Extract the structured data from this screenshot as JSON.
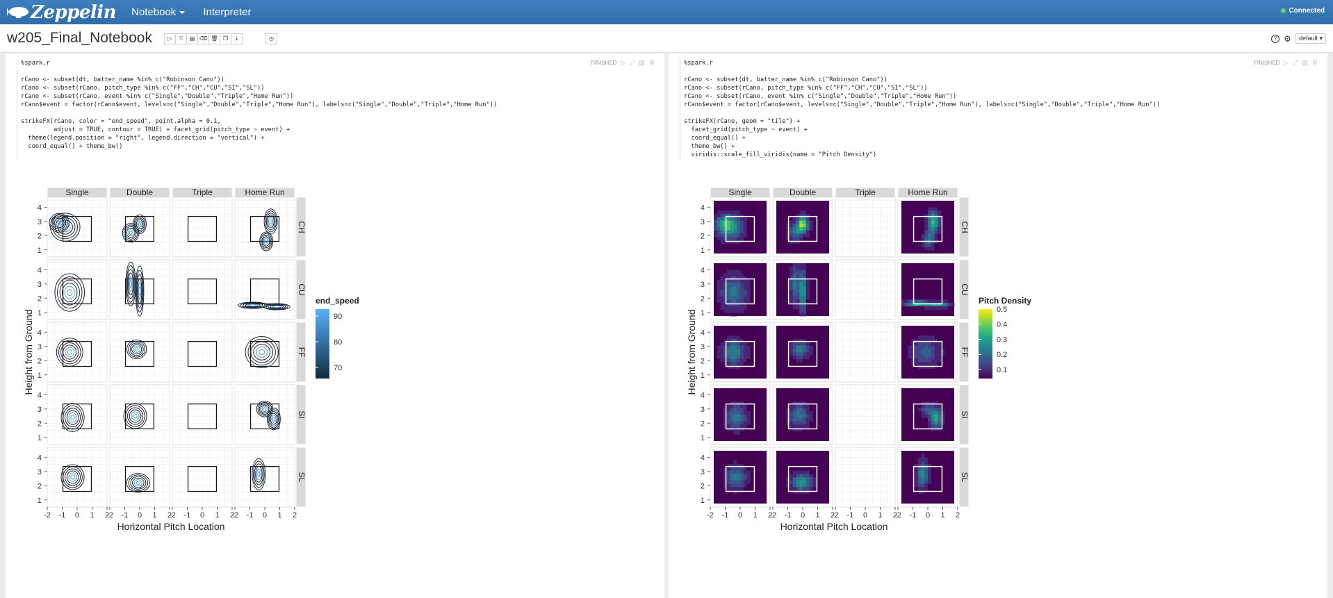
{
  "navbar": {
    "brand": "Zeppelin",
    "menu": [
      {
        "label": "Notebook",
        "has_caret": true
      },
      {
        "label": "Interpreter",
        "has_caret": false
      }
    ],
    "status": "Connected",
    "status_color": "#5cd65c"
  },
  "notebook": {
    "title": "w205_Final_Notebook",
    "toolbar_icons": [
      "play-icon",
      "hide-code-icon",
      "hide-output-icon",
      "eraser-icon",
      "trash-icon",
      "clone-icon",
      "export-icon"
    ],
    "schedule_icon": "clock-icon",
    "right": {
      "help_icon": "question-icon",
      "settings_icon": "gear-icon",
      "interpreter_button": "default"
    }
  },
  "paragraphs": [
    {
      "status": "FINISHED",
      "code": [
        "%spark.r",
        "",
        "rCano <- subset(dt, batter_name %in% c(\"Robinson Cano\"))",
        "rCano <- subset(rCano, pitch_type %in% c(\"FF\",\"CH\",\"CU\",\"SI\",\"SL\"))",
        "rCano <- subset(rCano, event %in% c(\"Single\",\"Double\",\"Triple\",\"Home Run\"))",
        "rCano$event = factor(rCano$event, levels=c(\"Single\",\"Double\",\"Triple\",\"Home Run\"), labels=c(\"Single\",\"Double\",\"Triple\",\"Home Run\"))",
        "",
        "strikeFX(rCano, color = \"end_speed\", point.alpha = 0.1,",
        "         adjust = TRUE, contour = TRUE) + facet_grid(pitch_type ~ event) +",
        "  theme(legend.position = \"right\", legend.direction = \"vertical\") +",
        "  coord_equal() + theme_bw()"
      ]
    },
    {
      "status": "FINISHED",
      "code": [
        "%spark.r",
        "",
        "rCano <- subset(dt, batter_name %in% c(\"Robinson Cano\"))",
        "rCano <- subset(rCano, pitch_type %in% c(\"FF\",\"CH\",\"CU\",\"SI\",\"SL\"))",
        "rCano <- subset(rCano, event %in% c(\"Single\",\"Double\",\"Triple\",\"Home Run\"))",
        "rCano$event = factor(rCano$event, levels=c(\"Single\",\"Double\",\"Triple\",\"Home Run\"), labels=c(\"Single\",\"Double\",\"Triple\",\"Home Run\"))",
        "",
        "strikeFX(rCano, geom = \"tile\") +",
        "  facet_grid(pitch_type ~ event) +",
        "  coord_equal() +",
        "  theme_bw() +",
        "  viridis::scale_fill_viridis(name = \"Pitch Density\")"
      ]
    }
  ],
  "chart_data": [
    {
      "type": "contour",
      "columns": [
        "Single",
        "Double",
        "Triple",
        "Home Run"
      ],
      "rows": [
        "CH",
        "CU",
        "FF",
        "SI",
        "SL"
      ],
      "xlabel": "Horizontal Pitch Location",
      "ylabel": "Height from Ground",
      "xticks": [
        "-2",
        "-1",
        "0",
        "1",
        "2"
      ],
      "yticks": [
        "1",
        "2",
        "3",
        "4"
      ],
      "xlim": [
        -2,
        2
      ],
      "ylim": [
        0.5,
        4.7
      ],
      "strike_zone": {
        "x": [
          -0.95,
          0.95
        ],
        "y": [
          1.6,
          3.35
        ]
      },
      "legend": {
        "title": "end_speed",
        "ticks": [
          "90",
          "80",
          "70"
        ],
        "position": "right"
      },
      "grid": true,
      "empty_panels": [
        [
          1,
          2
        ],
        [
          3,
          2
        ],
        [
          4,
          2
        ]
      ]
    },
    {
      "type": "heatmap",
      "columns": [
        "Single",
        "Double",
        "Triple",
        "Home Run"
      ],
      "rows": [
        "CH",
        "CU",
        "FF",
        "SI",
        "SL"
      ],
      "xlabel": "Horizontal Pitch Location",
      "ylabel": "Height from Ground",
      "xticks": [
        "-2",
        "-1",
        "0",
        "1",
        "2"
      ],
      "yticks": [
        "1",
        "2",
        "3",
        "4"
      ],
      "xlim": [
        -2,
        2
      ],
      "ylim": [
        0.5,
        4.7
      ],
      "strike_zone": {
        "x": [
          -0.95,
          0.95
        ],
        "y": [
          1.6,
          3.35
        ]
      },
      "legend": {
        "title": "Pitch Density",
        "ticks": [
          "0.5",
          "0.4",
          "0.3",
          "0.2",
          "0.1"
        ],
        "position": "right"
      },
      "grid": true,
      "empty_panels": [
        [
          0,
          2
        ],
        [
          1,
          2
        ],
        [
          2,
          2
        ],
        [
          3,
          2
        ],
        [
          4,
          2
        ]
      ]
    }
  ]
}
